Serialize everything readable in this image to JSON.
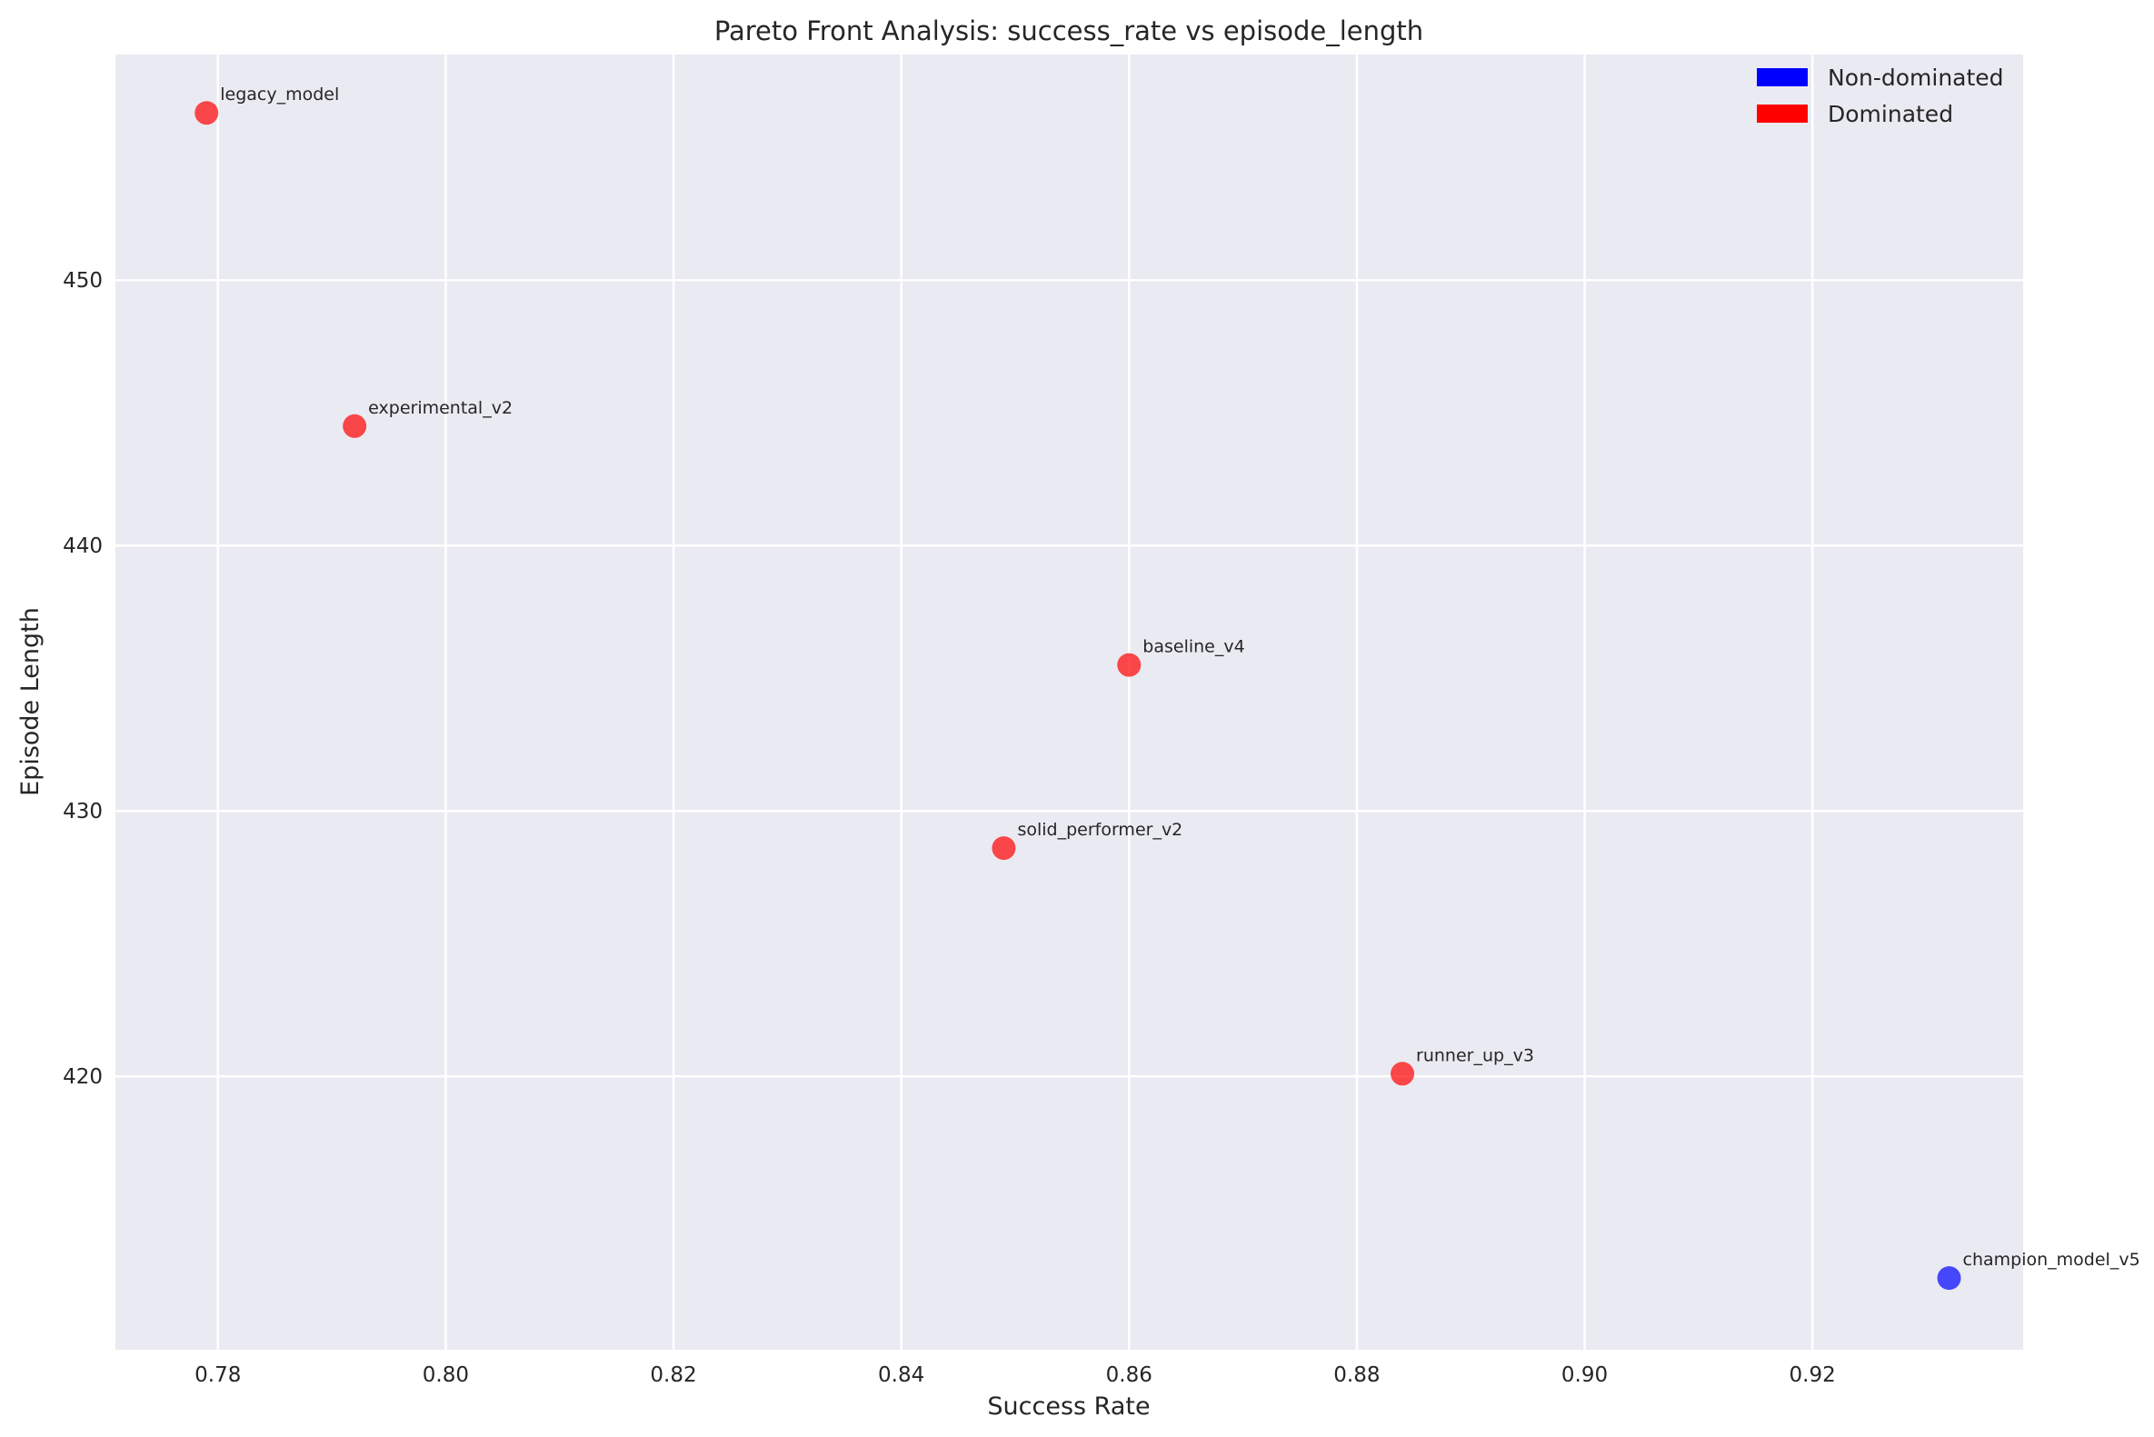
{
  "chart_data": {
    "type": "scatter",
    "title": "Pareto Front Analysis: success_rate vs episode_length",
    "xlabel": "Success Rate",
    "ylabel": "Episode Length",
    "xlim": [
      0.771,
      0.9385
    ],
    "ylim": [
      409.7,
      458.5
    ],
    "xticks": [
      0.78,
      0.8,
      0.82,
      0.84,
      0.86,
      0.88,
      0.9,
      0.92
    ],
    "xtick_labels": [
      "0.78",
      "0.80",
      "0.82",
      "0.84",
      "0.86",
      "0.88",
      "0.90",
      "0.92"
    ],
    "yticks": [
      420,
      430,
      440,
      450
    ],
    "ytick_labels": [
      "420",
      "430",
      "440",
      "450"
    ],
    "grid": true,
    "legend_position": "top-right",
    "legend": [
      {
        "label": "Non-dominated",
        "color": "#0000ff"
      },
      {
        "label": "Dominated",
        "color": "#ff0000"
      }
    ],
    "points": [
      {
        "label": "legacy_model",
        "x": 0.779,
        "y": 456.3,
        "dominated": true
      },
      {
        "label": "experimental_v2",
        "x": 0.792,
        "y": 444.5,
        "dominated": true
      },
      {
        "label": "baseline_v4",
        "x": 0.86,
        "y": 435.5,
        "dominated": true
      },
      {
        "label": "solid_performer_v2",
        "x": 0.849,
        "y": 428.6,
        "dominated": true
      },
      {
        "label": "runner_up_v3",
        "x": 0.884,
        "y": 420.1,
        "dominated": true
      },
      {
        "label": "champion_model_v5",
        "x": 0.932,
        "y": 412.4,
        "dominated": false
      }
    ]
  },
  "colors": {
    "background": "#eaeaf2",
    "grid": "#ffffff",
    "dominated": "#ff0000",
    "non_dominated": "#0000ff"
  }
}
